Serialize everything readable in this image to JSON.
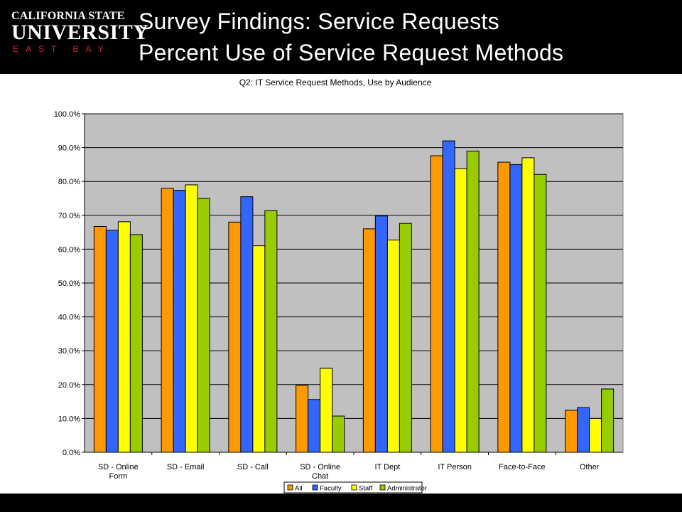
{
  "header": {
    "logo_line1": "CALIFORNIA STATE",
    "logo_line2": "UNIVERSITY",
    "logo_line3": "EAST BAY",
    "title_line1": "Survey Findings: Service Requests",
    "title_line2": "Percent Use of Service Request Methods"
  },
  "colors": {
    "background": "#000000",
    "plot_area": "#c0c0c0",
    "logo_accent": "#d4242a"
  },
  "chart_data": {
    "type": "bar",
    "title": "Q2: IT Service Request Methods, Use by Audience",
    "xlabel": "",
    "ylabel": "",
    "ylim": [
      0,
      100
    ],
    "ytick_labels": [
      "0.0%",
      "10.0%",
      "20.0%",
      "30.0%",
      "40.0%",
      "50.0%",
      "60.0%",
      "70.0%",
      "80.0%",
      "90.0%",
      "100.0%"
    ],
    "grid": true,
    "legend_position": "bottom",
    "categories": [
      [
        "SD - Online",
        "Form"
      ],
      [
        "SD - Email"
      ],
      [
        "SD - Call"
      ],
      [
        "SD - Online",
        "Chat"
      ],
      [
        "IT Dept"
      ],
      [
        "IT Person"
      ],
      [
        "Face-to-Face"
      ],
      [
        "Other"
      ]
    ],
    "series": [
      {
        "name": "All",
        "color": "#ff9900",
        "values": [
          66.7,
          78.0,
          68.0,
          19.8,
          66.0,
          87.6,
          85.7,
          12.4
        ]
      },
      {
        "name": "Faculty",
        "color": "#3366ff",
        "values": [
          65.6,
          77.4,
          75.5,
          15.6,
          69.8,
          92.0,
          85.0,
          13.2
        ]
      },
      {
        "name": "Staff",
        "color": "#ffff00",
        "values": [
          68.1,
          79.0,
          61.0,
          24.8,
          62.7,
          83.8,
          87.0,
          10.0
        ]
      },
      {
        "name": "Administrator",
        "color": "#99cc00",
        "values": [
          64.3,
          75.0,
          71.4,
          10.7,
          67.6,
          89.0,
          82.1,
          18.7
        ]
      }
    ]
  }
}
